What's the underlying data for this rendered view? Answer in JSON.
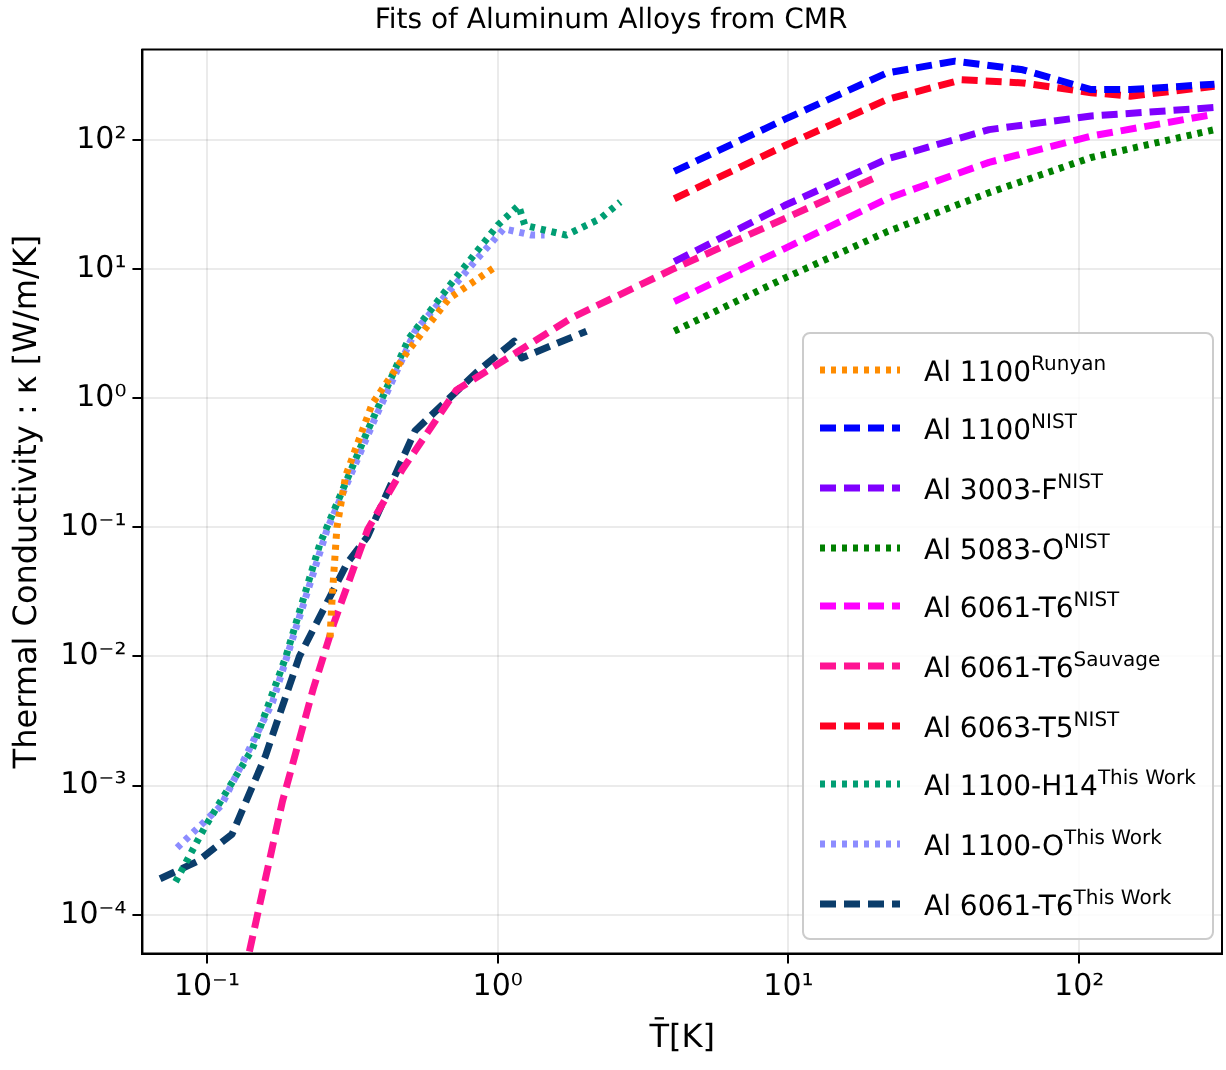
{
  "chart_data": {
    "type": "line",
    "title": "Fits of Aluminum Alloys from CMR",
    "xlabel": "T̄[K]",
    "ylabel": "Thermal Conductivity : κ [W/m/K]",
    "log": "xy",
    "grid": true,
    "legend": "bottom right",
    "marker": "none",
    "xlim": [
      0.06,
      310
    ],
    "xticks": [
      {
        "value": 0.1,
        "label": "10⁻¹"
      },
      {
        "value": 1,
        "label": "10⁰"
      },
      {
        "value": 10,
        "label": "10¹"
      },
      {
        "value": 100,
        "label": "10²"
      }
    ],
    "ylim": [
      5e-05,
      500
    ],
    "yticks": [
      {
        "value": 0.0001,
        "label": "10⁻⁴"
      },
      {
        "value": 0.001,
        "label": "10⁻³"
      },
      {
        "value": 0.01,
        "label": "10⁻²"
      },
      {
        "value": 0.1,
        "label": "10⁻¹"
      },
      {
        "value": 1,
        "label": "10⁰"
      },
      {
        "value": 10,
        "label": "10¹"
      },
      {
        "value": 100,
        "label": "10²"
      }
    ],
    "series": [
      {
        "name": "Al 1100$^{Runyan}$",
        "color": "#ff8c00",
        "line_style": "dotted",
        "x": [
          0.265,
          0.27,
          0.28,
          0.3,
          0.37,
          0.49,
          0.68,
          1.0
        ],
        "values": [
          0.014,
          0.03,
          0.1,
          0.25,
          0.9,
          2.3,
          5.9,
          10.7
        ]
      },
      {
        "name": "Al 1100$^{NIST}$",
        "color": "#0000ff",
        "line_style": "dashed",
        "x": [
          4.05,
          9.7,
          21.8,
          37.4,
          64,
          110,
          150,
          292
        ],
        "values": [
          57,
          144,
          330,
          407,
          349,
          245,
          245,
          270
        ]
      },
      {
        "name": "Al 3003-F$^{NIST}$",
        "color": "#7f00ff",
        "line_style": "dashed",
        "x": [
          4.05,
          9.7,
          21.8,
          49,
          110,
          292
        ],
        "values": [
          11.4,
          31,
          71,
          120,
          153,
          178
        ]
      },
      {
        "name": "Al 5083-O$^{NIST}$",
        "color": "#008000",
        "line_style": "dotted",
        "x": [
          4.05,
          9.7,
          21.8,
          49,
          110,
          292
        ],
        "values": [
          3.3,
          8.5,
          19.4,
          39,
          73,
          120
        ]
      },
      {
        "name": "Al 6061-T6$^{NIST}$",
        "color": "#ff00ff",
        "line_style": "dashed",
        "x": [
          4.05,
          9.7,
          21.8,
          49,
          110,
          292
        ],
        "values": [
          5.6,
          14.4,
          35,
          67,
          107,
          158
        ]
      },
      {
        "name": "Al 6061-T6$^{Sauvage}$",
        "color": "#ff1493",
        "line_style": "dashed",
        "x": [
          0.14,
          0.182,
          0.232,
          0.273,
          0.357,
          0.47,
          0.72,
          1.0,
          1.8,
          4.05,
          19.5
        ],
        "values": [
          5.2e-05,
          0.00076,
          0.0056,
          0.018,
          0.096,
          0.28,
          1.15,
          1.83,
          4.2,
          10.1,
          50
        ]
      },
      {
        "name": "Al 6063-T5$^{NIST}$",
        "color": "#ff0022",
        "line_style": "dashed",
        "x": [
          4.05,
          9.7,
          21.8,
          39.4,
          64,
          110,
          150,
          292
        ],
        "values": [
          35,
          90,
          205,
          292,
          276,
          232,
          218,
          260
        ]
      },
      {
        "name": "Al 1100-H14$^{This Work}$",
        "color": "#009e73",
        "line_style": "dotted",
        "x": [
          0.078,
          0.098,
          0.143,
          0.187,
          0.245,
          0.357,
          0.495,
          0.685,
          1.0,
          1.18,
          1.24,
          1.72,
          2.25,
          2.64
        ],
        "values": [
          0.00018,
          0.00047,
          0.0019,
          0.01,
          0.075,
          0.56,
          2.9,
          7.5,
          21.8,
          31,
          21.8,
          18.3,
          24.5,
          33
        ]
      },
      {
        "name": "Al 1100-O$^{This Work}$",
        "color": "#8c8cff",
        "line_style": "dotted",
        "x": [
          0.079,
          0.112,
          0.168,
          0.259,
          0.38,
          0.52,
          0.85,
          1.05,
          1.31,
          1.45
        ],
        "values": [
          0.00033,
          0.0007,
          0.0044,
          0.096,
          0.71,
          3.3,
          12,
          20.5,
          18.3,
          18.3
        ]
      },
      {
        "name": "Al 6061-T6$^{This Work}$",
        "color": "#0b3d6b",
        "line_style": "dashed",
        "x": [
          0.069,
          0.093,
          0.122,
          0.159,
          0.208,
          0.304,
          0.357,
          0.52,
          0.85,
          1.14,
          1.21,
          2.02
        ],
        "values": [
          0.00019,
          0.00026,
          0.00042,
          0.0017,
          0.01,
          0.053,
          0.085,
          0.56,
          1.6,
          2.76,
          2.05,
          3.3
        ]
      }
    ]
  }
}
